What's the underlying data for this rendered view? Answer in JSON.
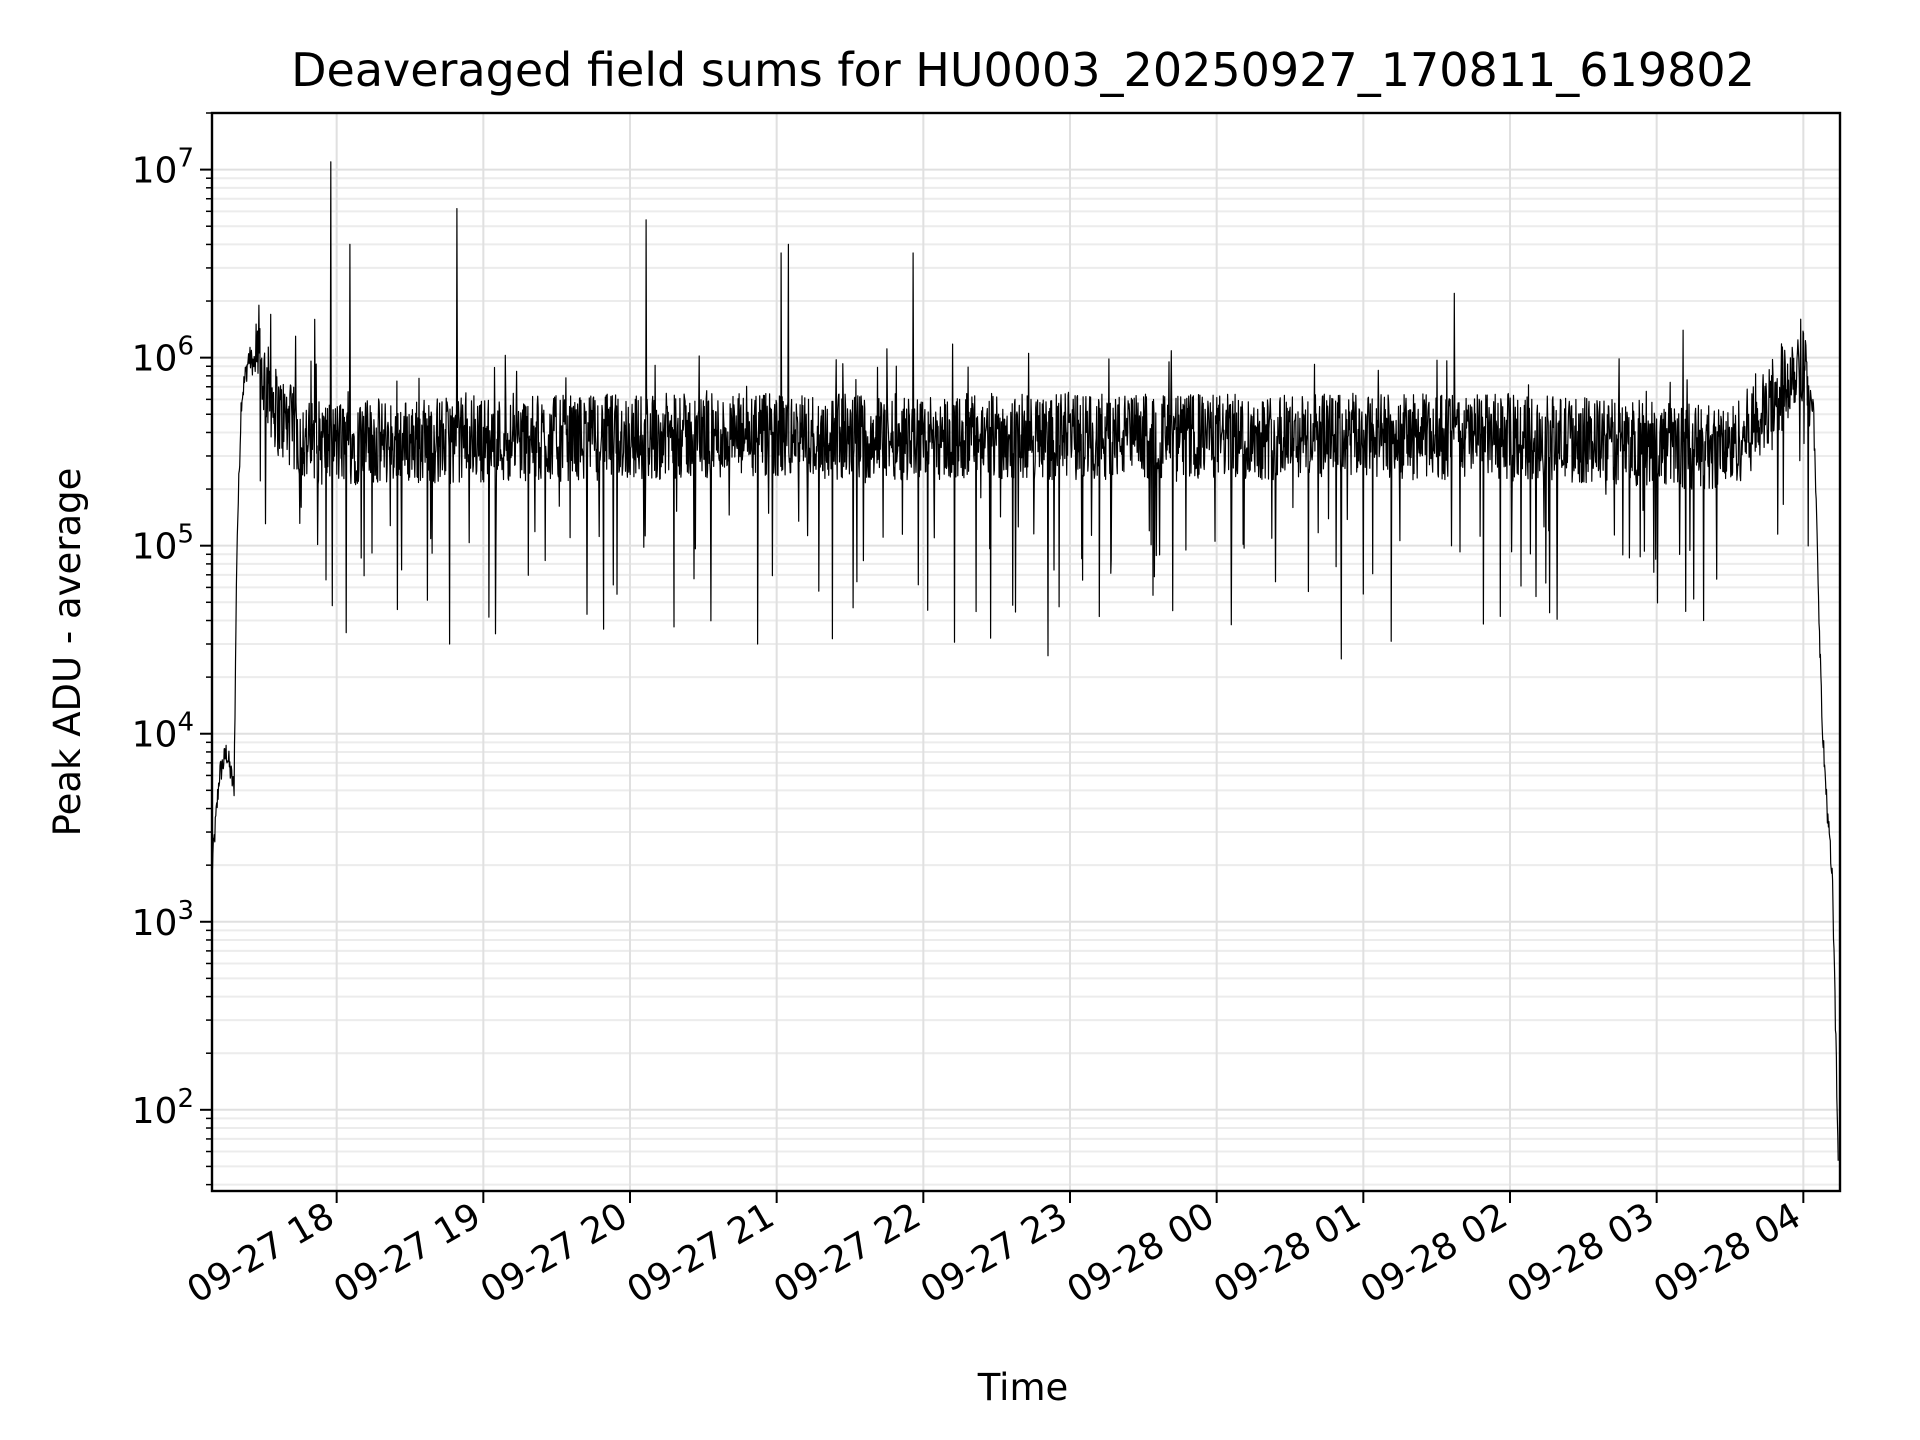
{
  "chart_data": {
    "type": "line",
    "title": "Deaveraged field sums for HU0003_20250927_170811_619802",
    "xlabel": "Time",
    "ylabel": "Peak ADU - average",
    "yscale": "log",
    "grid": true,
    "ylim": [
      37,
      20000000
    ],
    "xlim_hours": [
      17.15,
      28.25
    ],
    "y_ticks": [
      {
        "base": "10",
        "exp": "2",
        "value": 100
      },
      {
        "base": "10",
        "exp": "3",
        "value": 1000
      },
      {
        "base": "10",
        "exp": "4",
        "value": 10000
      },
      {
        "base": "10",
        "exp": "5",
        "value": 100000
      },
      {
        "base": "10",
        "exp": "6",
        "value": 1000000
      },
      {
        "base": "10",
        "exp": "7",
        "value": 10000000
      }
    ],
    "x_ticks": [
      {
        "label": "09-27 18",
        "hour": 18
      },
      {
        "label": "09-27 19",
        "hour": 19
      },
      {
        "label": "09-27 20",
        "hour": 20
      },
      {
        "label": "09-27 21",
        "hour": 21
      },
      {
        "label": "09-27 22",
        "hour": 22
      },
      {
        "label": "09-27 23",
        "hour": 23
      },
      {
        "label": "09-28 00",
        "hour": 24
      },
      {
        "label": "09-28 01",
        "hour": 25
      },
      {
        "label": "09-28 02",
        "hour": 26
      },
      {
        "label": "09-28 03",
        "hour": 27
      },
      {
        "label": "09-28 04",
        "hour": 28
      }
    ],
    "series": [
      {
        "name": "Peak ADU - average",
        "color": "#000000",
        "envelope": [
          {
            "hour": 17.15,
            "value": 1900
          },
          {
            "hour": 17.2,
            "value": 6000
          },
          {
            "hour": 17.25,
            "value": 8000
          },
          {
            "hour": 17.3,
            "value": 5000
          },
          {
            "hour": 17.32,
            "value": 100000
          },
          {
            "hour": 17.35,
            "value": 600000
          },
          {
            "hour": 17.4,
            "value": 1000000
          },
          {
            "hour": 17.5,
            "value": 800000
          },
          {
            "hour": 17.6,
            "value": 500000
          },
          {
            "hour": 17.8,
            "value": 350000
          },
          {
            "hour": 20.0,
            "value": 380000
          },
          {
            "hour": 23.0,
            "value": 380000
          },
          {
            "hour": 26.0,
            "value": 380000
          },
          {
            "hour": 27.5,
            "value": 330000
          },
          {
            "hour": 27.8,
            "value": 550000
          },
          {
            "hour": 27.95,
            "value": 950000
          },
          {
            "hour": 28.0,
            "value": 1000000
          },
          {
            "hour": 28.07,
            "value": 500000
          },
          {
            "hour": 28.13,
            "value": 10000
          },
          {
            "hour": 28.2,
            "value": 1500
          },
          {
            "hour": 28.24,
            "value": 45
          }
        ],
        "spikes": [
          {
            "hour": 17.47,
            "value": 1900000
          },
          {
            "hour": 17.55,
            "value": 1700000
          },
          {
            "hour": 17.72,
            "value": 1300000
          },
          {
            "hour": 17.85,
            "value": 1600000
          },
          {
            "hour": 17.96,
            "value": 11000000
          },
          {
            "hour": 18.09,
            "value": 4000000
          },
          {
            "hour": 18.82,
            "value": 6200000
          },
          {
            "hour": 19.82,
            "value": 1800000
          },
          {
            "hour": 20.11,
            "value": 5400000
          },
          {
            "hour": 21.03,
            "value": 3600000
          },
          {
            "hour": 21.08,
            "value": 4000000
          },
          {
            "hour": 21.93,
            "value": 3600000
          },
          {
            "hour": 25.62,
            "value": 2200000
          },
          {
            "hour": 27.18,
            "value": 1400000
          }
        ],
        "dips": [
          {
            "hour": 17.97,
            "value": 48000
          },
          {
            "hour": 18.77,
            "value": 30000
          },
          {
            "hour": 19.82,
            "value": 36000
          },
          {
            "hour": 20.3,
            "value": 37000
          },
          {
            "hour": 20.87,
            "value": 30000
          },
          {
            "hour": 21.38,
            "value": 32000
          },
          {
            "hour": 22.85,
            "value": 26000
          },
          {
            "hour": 23.2,
            "value": 42000
          },
          {
            "hour": 24.1,
            "value": 38000
          },
          {
            "hour": 24.85,
            "value": 25000
          },
          {
            "hour": 25.19,
            "value": 31000
          },
          {
            "hour": 26.27,
            "value": 44000
          },
          {
            "hour": 27.32,
            "value": 40000
          }
        ]
      }
    ]
  }
}
